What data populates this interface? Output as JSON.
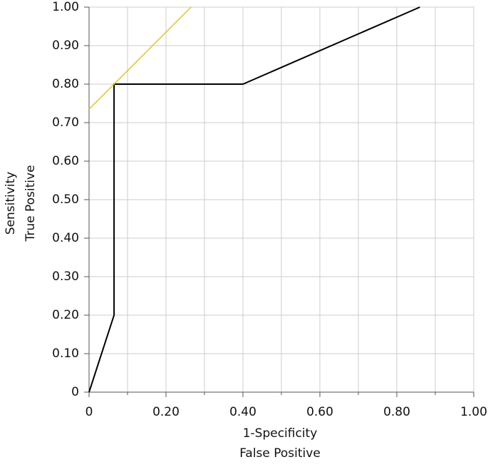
{
  "chart_data": {
    "type": "line",
    "xlabel": [
      "1-Specificity",
      "False Positive"
    ],
    "ylabel": [
      "Sensitivity",
      "True Positive"
    ],
    "xlim": [
      0,
      1
    ],
    "ylim": [
      0,
      1
    ],
    "xticks": [
      0,
      {
        "value": 0.2,
        "label": "0.20"
      },
      {
        "value": 0.4,
        "label": "0.40"
      },
      {
        "value": 0.6,
        "label": "0.60"
      },
      {
        "value": 0.8,
        "label": "0.80"
      },
      {
        "value": 1,
        "label": "1.00"
      }
    ],
    "x_minor_ticks": [
      0.1,
      0.3,
      0.5,
      0.7,
      0.9
    ],
    "yticks": [
      0,
      {
        "value": 0.1,
        "label": "0.10"
      },
      {
        "value": 0.2,
        "label": "0.20"
      },
      {
        "value": 0.3,
        "label": "0.30"
      },
      {
        "value": 0.4,
        "label": "0.40"
      },
      {
        "value": 0.5,
        "label": "0.50"
      },
      {
        "value": 0.6,
        "label": "0.60"
      },
      {
        "value": 0.7,
        "label": "0.70"
      },
      {
        "value": 0.8,
        "label": "0.80"
      },
      {
        "value": 0.9,
        "label": "0.90"
      },
      {
        "value": 1,
        "label": "1.00"
      }
    ],
    "grid": true,
    "series": [
      {
        "color": "#000000",
        "x": [
          0,
          0.065,
          0.065,
          0.4,
          0.86
        ],
        "values": [
          0,
          0.2,
          0.8,
          0.8,
          1
        ]
      },
      {
        "color": "#e3c520",
        "x": [
          0,
          0.265
        ],
        "values": [
          0.735,
          1
        ]
      }
    ]
  }
}
